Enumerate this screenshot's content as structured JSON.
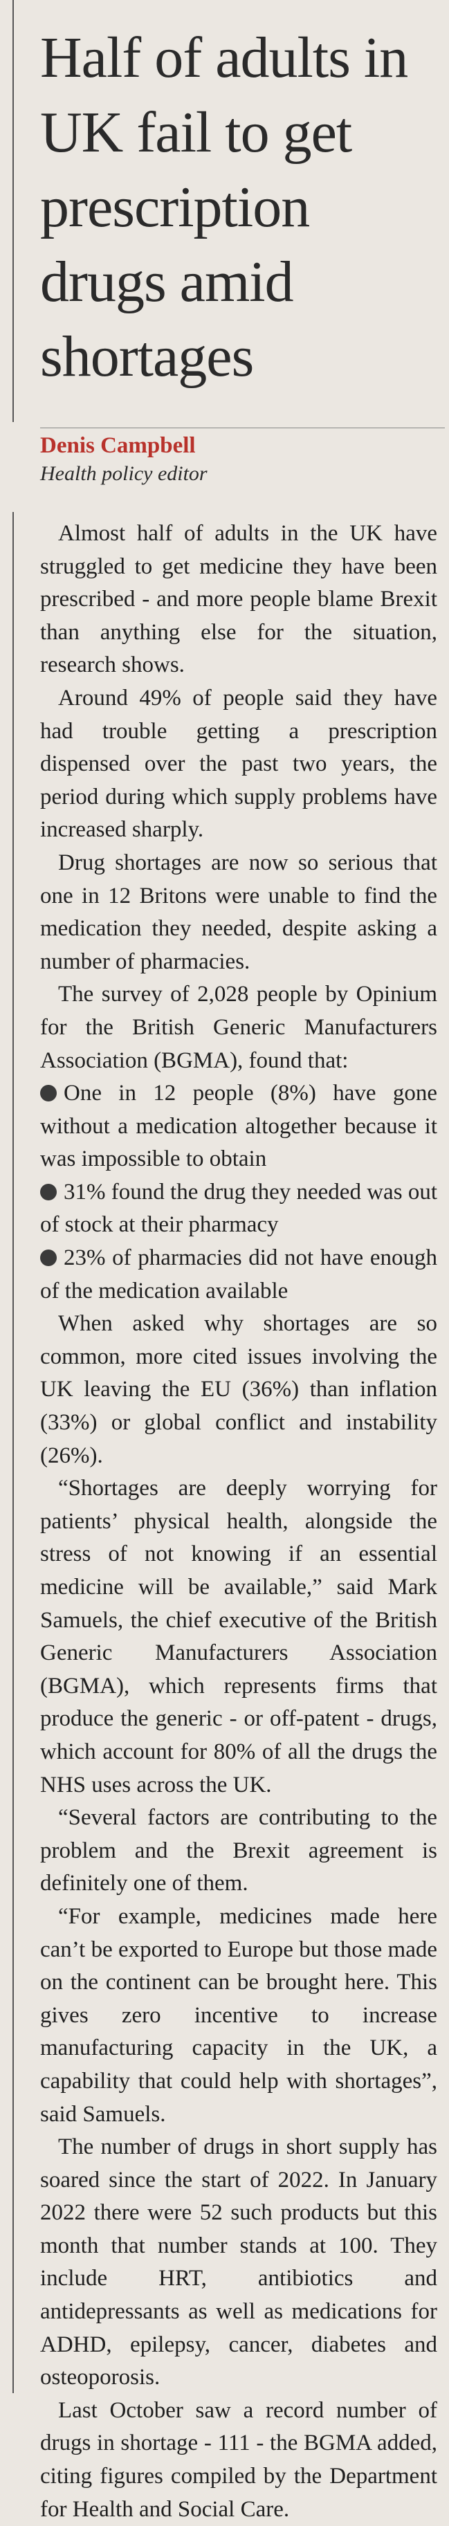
{
  "article": {
    "headline": "Half of adults in UK fail to get prescription drugs amid shortages",
    "byline": {
      "name": "Denis Campbell",
      "role": "Health policy editor"
    },
    "blocks": [
      {
        "paragraph": "Almost half of adults in the UK have struggled to get medicine they have been prescribed - and more people blame Brexit than anything else for the situation, research shows."
      },
      {
        "paragraph": "Around 49% of people said they have had trouble getting a prescription dispensed over the past two years, the period during which supply problems have increased sharply."
      },
      {
        "paragraph": "Drug shortages are now so serious that one in 12 Britons were unable to find the medication they needed, despite asking a number of pharmacies."
      },
      {
        "paragraph": "The survey of 2,028 people by Opinium for the British Generic Manufacturers Association (BGMA), found that:"
      },
      {
        "bullet": "One in 12 people (8%) have gone without a medication altogether because it was impossible to obtain"
      },
      {
        "bullet": "31% found the drug they needed was out of stock at their pharmacy"
      },
      {
        "bullet": "23% of pharmacies did not have enough of the medication available"
      },
      {
        "paragraph": "When asked why shortages are so common, more cited issues involving the UK leaving the EU (36%) than inflation (33%) or global conflict and instability (26%)."
      },
      {
        "paragraph": "“Shortages are deeply worrying for patients’ physical health, alongside the stress of not knowing if an essential medicine will be available,” said Mark Samuels, the chief executive of the British Generic Manufacturers Association (BGMA), which represents firms that produce the generic - or off-patent - drugs, which account for 80% of all the drugs the NHS uses across the UK."
      },
      {
        "paragraph": "“Several factors are contributing to the problem and the Brexit agreement is definitely one of them."
      },
      {
        "paragraph": "“For example, medicines made here can’t be exported to Europe but those made on the continent can be brought here. This gives zero incentive to increase manufacturing capacity in the UK, a capability that could help with shortages”, said Samuels."
      },
      {
        "paragraph": "The number of drugs in short supply has soared since the start of 2022. In January 2022 there were 52 such products but this month that number stands at 100. They include HRT, antibiotics and antidepressants as well as medications for ADHD, epilepsy, cancer, diabetes and osteoporosis."
      },
      {
        "paragraph": "Last October saw a record number of drugs in shortage - 111 - the BGMA added, citing figures compiled by the Department for Health and Social Care."
      }
    ]
  }
}
